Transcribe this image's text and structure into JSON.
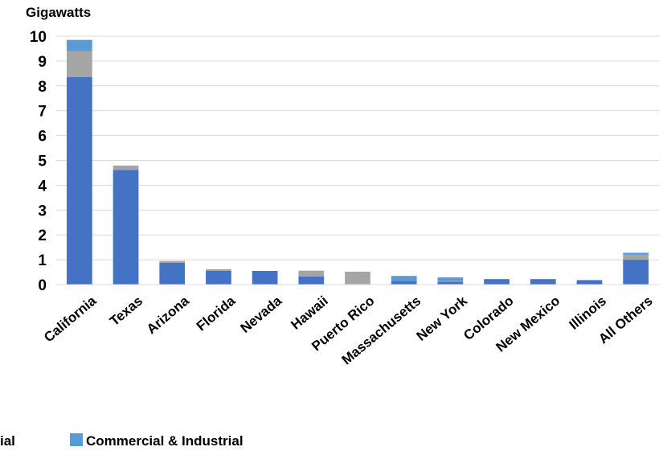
{
  "chart_data": {
    "type": "bar",
    "stacked": true,
    "ylabel": "Gigawatts",
    "ylim": [
      0,
      10
    ],
    "yticks": [
      0,
      1,
      2,
      3,
      4,
      5,
      6,
      7,
      8,
      9,
      10
    ],
    "grid": true,
    "legend_position": "bottom",
    "categories": [
      "California",
      "Texas",
      "Arizona",
      "Florida",
      "Nevada",
      "Hawaii",
      "Puerto Rico",
      "Massachusetts",
      "New York",
      "Colorado",
      "New Mexico",
      "Illinois",
      "All Others"
    ],
    "series": [
      {
        "name": "",
        "color": "#4472C4",
        "values": [
          8.35,
          4.62,
          0.88,
          0.55,
          0.55,
          0.33,
          0.0,
          0.15,
          0.12,
          0.22,
          0.22,
          0.18,
          1.0
        ]
      },
      {
        "name": "",
        "color": "#A5A5A5",
        "values": [
          1.05,
          0.17,
          0.07,
          0.07,
          0.0,
          0.23,
          0.52,
          0.0,
          0.02,
          0.0,
          0.0,
          0.0,
          0.2
        ]
      },
      {
        "name": "Commercial & Industrial",
        "color": "#5B9BD5",
        "values": [
          0.45,
          0.0,
          0.0,
          0.0,
          0.0,
          0.0,
          0.0,
          0.2,
          0.15,
          0.0,
          0.0,
          0.0,
          0.08
        ]
      }
    ],
    "legend": [
      {
        "label": "ial",
        "color": ""
      },
      {
        "label": "Commercial & Industrial",
        "color": "#5B9BD5"
      }
    ]
  }
}
